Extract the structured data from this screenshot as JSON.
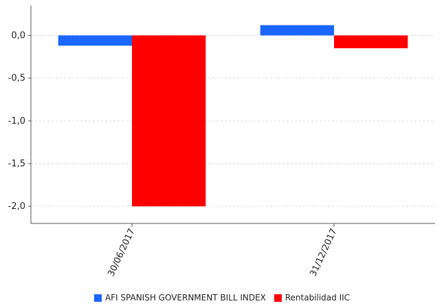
{
  "chart_data": {
    "type": "bar",
    "categories": [
      "30/06/2017",
      "31/12/2017"
    ],
    "series": [
      {
        "name": "AFI SPANISH GOVERNMENT BILL INDEX",
        "color": "#1a66ff",
        "values": [
          -0.12,
          0.12
        ]
      },
      {
        "name": "Rentabilidad IIC",
        "color": "#ff0000",
        "values": [
          -2.0,
          -0.15
        ]
      }
    ],
    "y_ticks": [
      "0,0",
      "-0,5",
      "-1,0",
      "-1,5",
      "-2,0"
    ],
    "y_tick_values": [
      0.0,
      -0.5,
      -1.0,
      -1.5,
      -2.0
    ],
    "ylim": [
      -2.2,
      0.35
    ],
    "grid": true,
    "legend_position": "bottom",
    "title": "",
    "xlabel": "",
    "ylabel": ""
  }
}
